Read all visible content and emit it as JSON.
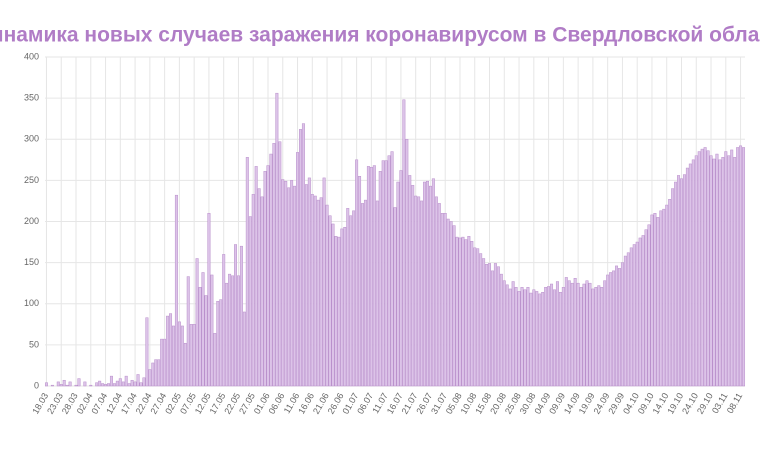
{
  "chart_data": {
    "type": "bar",
    "title": "Динамика новых случаев заражения коронавирусом в Свердловской области",
    "color": "#dcc3e8",
    "edge_color": "#b98fcb",
    "grid": true,
    "ylim": [
      0,
      400
    ],
    "yticks": [
      0,
      50,
      100,
      150,
      200,
      250,
      300,
      350,
      400
    ],
    "categories": [
      "18.03",
      null,
      null,
      null,
      null,
      "23.03",
      null,
      null,
      null,
      null,
      "28.03",
      null,
      null,
      null,
      null,
      "02.04",
      null,
      null,
      null,
      null,
      "07.04",
      null,
      null,
      null,
      null,
      "12.04",
      null,
      null,
      null,
      null,
      "17.04",
      null,
      null,
      null,
      null,
      "22.04",
      null,
      null,
      null,
      null,
      "27.04",
      null,
      null,
      null,
      null,
      "02.05",
      null,
      null,
      null,
      null,
      "07.05",
      null,
      null,
      null,
      null,
      "12.05",
      null,
      null,
      null,
      null,
      "17.05",
      null,
      null,
      null,
      null,
      "22.05",
      null,
      null,
      null,
      null,
      "27.05",
      null,
      null,
      null,
      null,
      "01.06",
      null,
      null,
      null,
      null,
      "06.06",
      null,
      null,
      null,
      null,
      "11.06",
      null,
      null,
      null,
      null,
      "16.06",
      null,
      null,
      null,
      null,
      "21.06",
      null,
      null,
      null,
      null,
      "26.06",
      null,
      null,
      null,
      null,
      "01.07",
      null,
      null,
      null,
      null,
      "06.07",
      null,
      null,
      null,
      null,
      "11.07",
      null,
      null,
      null,
      null,
      "16.07",
      null,
      null,
      null,
      null,
      "21.07",
      null,
      null,
      null,
      null,
      "26.07",
      null,
      null,
      null,
      null,
      "31.07",
      null,
      null,
      null,
      null,
      "05.08",
      null,
      null,
      null,
      null,
      "10.08",
      null,
      null,
      null,
      null,
      "15.08",
      null,
      null,
      null,
      null,
      "20.08",
      null,
      null,
      null,
      null,
      "25.08",
      null,
      null,
      null,
      null,
      "30.08",
      null,
      null,
      null,
      null,
      "04.09",
      null,
      null,
      null,
      null,
      "09.09",
      null,
      null,
      null,
      null,
      "14.09",
      null,
      null,
      null,
      null,
      "19.09",
      null,
      null,
      null,
      null,
      "24.09",
      null,
      null,
      null,
      null,
      "29.09",
      null,
      null,
      null,
      null,
      "04.10",
      null,
      null,
      null,
      null,
      "09.10",
      null,
      null,
      null,
      null,
      "14.10",
      null,
      null,
      null,
      null,
      "19.10",
      null,
      null,
      null,
      null,
      "24.10",
      null,
      null,
      null,
      null,
      "29.10",
      null,
      null,
      null,
      null,
      "03.11",
      null,
      null,
      null,
      null,
      "08.11",
      null
    ],
    "values": [
      4,
      0,
      1,
      0,
      5,
      2,
      7,
      1,
      5,
      0,
      1,
      9,
      0,
      5,
      0,
      1,
      0,
      4,
      6,
      3,
      2,
      3,
      12,
      3,
      6,
      9,
      5,
      12,
      3,
      7,
      5,
      14,
      4,
      10,
      83,
      20,
      28,
      32,
      32,
      57,
      57,
      85,
      88,
      73,
      232,
      78,
      73,
      52,
      133,
      75,
      75,
      155,
      120,
      138,
      110,
      210,
      135,
      64,
      103,
      105,
      160,
      125,
      136,
      134,
      172,
      134,
      170,
      90,
      278,
      206,
      233,
      267,
      240,
      230,
      261,
      268,
      282,
      295,
      356,
      297,
      251,
      249,
      241,
      250,
      243,
      284,
      312,
      319,
      245,
      253,
      233,
      231,
      226,
      229,
      253,
      220,
      207,
      197,
      182,
      181,
      191,
      193,
      216,
      207,
      213,
      275,
      255,
      222,
      226,
      267,
      266,
      268,
      225,
      261,
      274,
      274,
      280,
      285,
      217,
      248,
      262,
      348,
      300,
      256,
      244,
      231,
      230,
      225,
      248,
      249,
      243,
      252,
      230,
      222,
      210,
      210,
      203,
      200,
      195,
      181,
      180,
      181,
      178,
      182,
      176,
      168,
      167,
      161,
      155,
      148,
      149,
      140,
      149,
      145,
      136,
      128,
      123,
      118,
      127,
      120,
      115,
      120,
      117,
      120,
      113,
      117,
      115,
      112,
      114,
      120,
      121,
      124,
      117,
      127,
      114,
      120,
      132,
      128,
      125,
      131,
      125,
      120,
      124,
      128,
      125,
      118,
      120,
      122,
      120,
      128,
      135,
      138,
      140,
      146,
      143,
      150,
      158,
      162,
      168,
      172,
      175,
      180,
      183,
      190,
      196,
      208,
      210,
      205,
      213,
      215,
      220,
      227,
      240,
      248,
      256,
      252,
      257,
      265,
      270,
      275,
      280,
      285,
      288,
      290,
      286,
      280,
      276,
      282,
      275,
      278,
      285,
      280,
      287,
      278,
      290,
      292,
      290
    ]
  }
}
